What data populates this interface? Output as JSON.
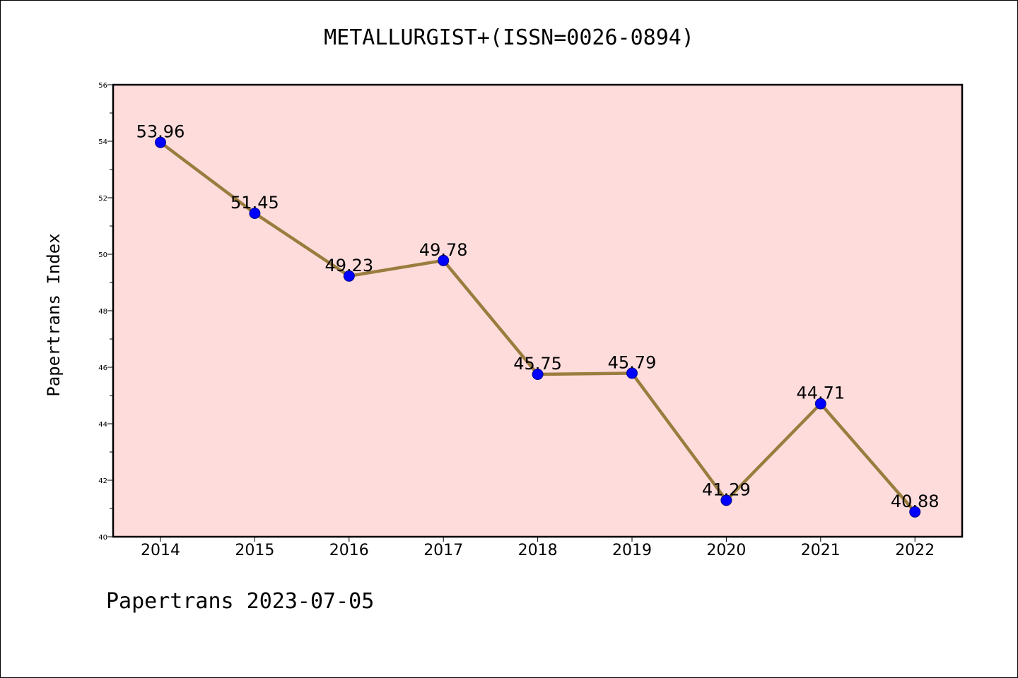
{
  "title": "METALLURGIST+(ISSN=0026-0894)",
  "footer": "Papertrans 2023-07-05",
  "chart_data": {
    "type": "line",
    "title": "METALLURGIST+(ISSN=0026-0894)",
    "xlabel": "",
    "ylabel": "Papertrans Index",
    "categories": [
      "2014",
      "2015",
      "2016",
      "2017",
      "2018",
      "2019",
      "2020",
      "2021",
      "2022"
    ],
    "series": [
      {
        "values": [
          53.96,
          51.45,
          49.23,
          49.78,
          45.75,
          45.79,
          41.29,
          44.71,
          40.88
        ]
      }
    ],
    "data_labels": [
      "53.96",
      "51.45",
      "49.23",
      "49.78",
      "45.75",
      "45.79",
      "41.29",
      "44.71",
      "40.88"
    ],
    "ylim": [
      40,
      56
    ],
    "yticks": [
      "40",
      "42",
      "44",
      "46",
      "48",
      "50",
      "52",
      "54",
      "56"
    ],
    "grid": false,
    "legend": "none",
    "colors": {
      "plot_background": "#fddcdb",
      "line": "#9a7d3e",
      "marker": "#0000ff"
    }
  }
}
